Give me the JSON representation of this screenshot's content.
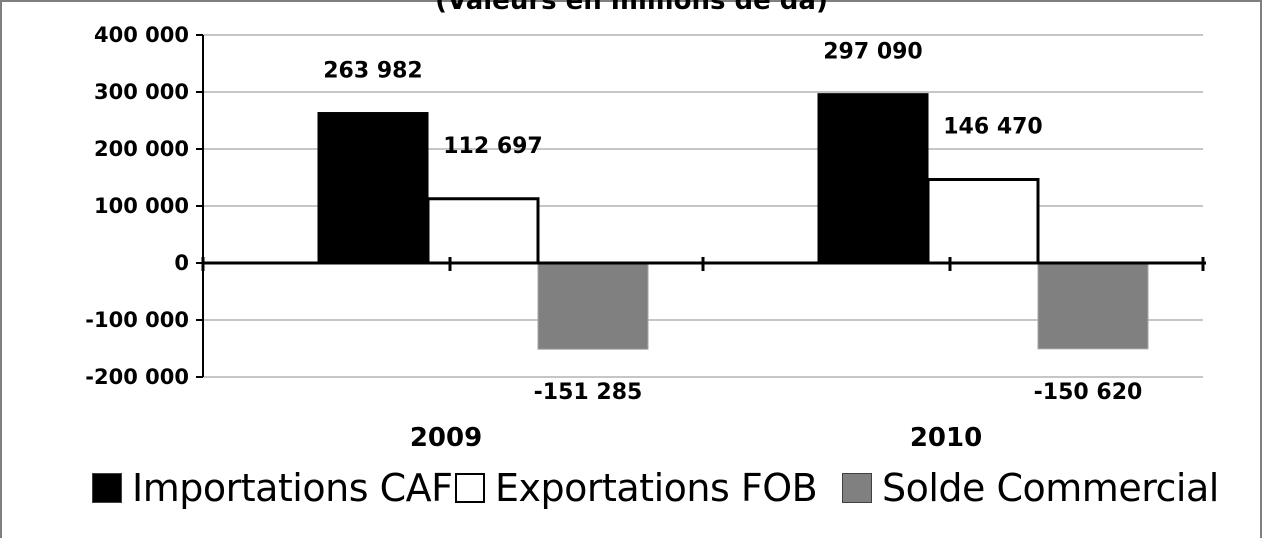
{
  "title": "(Valeurs en millions de da)",
  "chart_data": {
    "type": "bar",
    "title": "(Valeurs en millions de da)",
    "xlabel": "",
    "ylabel": "",
    "categories": [
      "2009",
      "2010"
    ],
    "series": [
      {
        "name": "Importations CAF",
        "values": [
          263982,
          297090
        ],
        "color": "#000000"
      },
      {
        "name": "Exportations FOB",
        "values": [
          112697,
          146470
        ],
        "color": "#ffffff"
      },
      {
        "name": "Solde Commercial",
        "values": [
          -151285,
          -150620
        ],
        "color": "#808080"
      }
    ],
    "data_labels": [
      [
        "263 982",
        "297 090"
      ],
      [
        "112 697",
        "146 470"
      ],
      [
        "-151 285",
        "-150 620"
      ]
    ],
    "ylim": [
      -200000,
      400000
    ],
    "yticks": [
      400000,
      300000,
      200000,
      100000,
      0,
      -100000,
      -200000
    ],
    "ytick_labels": [
      "400 000",
      "300 000",
      "200 000",
      "100 000",
      "0",
      "-100 000",
      "-200 000"
    ],
    "grid": true,
    "legend_position": "bottom"
  },
  "legend": [
    {
      "label": "Importations CAF",
      "color": "#000000"
    },
    {
      "label": "Exportations FOB",
      "color": "#ffffff"
    },
    {
      "label": "Solde Commercial",
      "color": "#808080"
    }
  ]
}
